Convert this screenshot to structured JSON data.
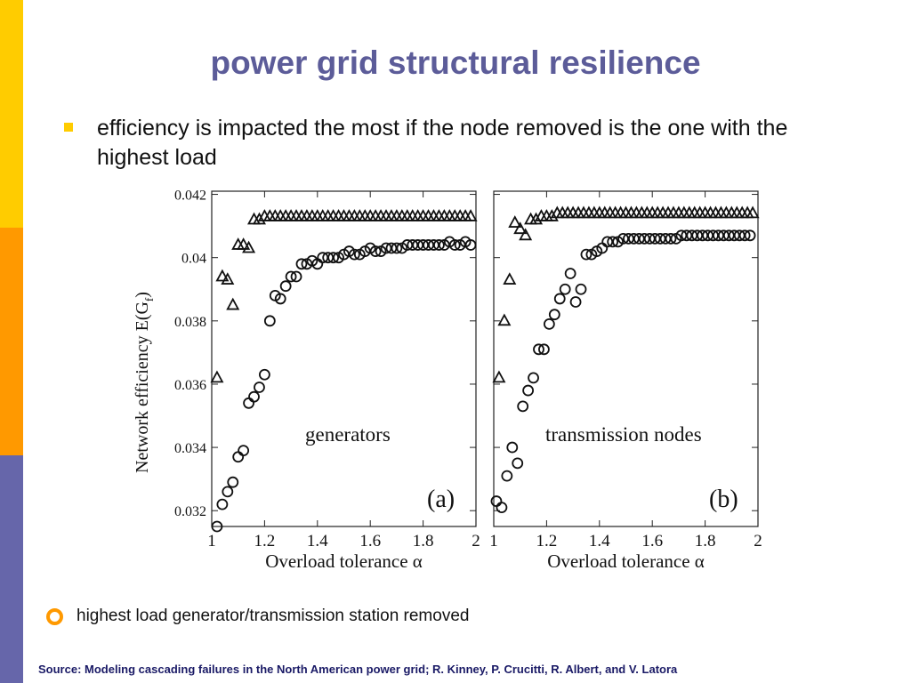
{
  "slide": {
    "title": "power grid structural resilience",
    "bullet1": "efficiency is impacted the most if the node removed is the one with the highest load",
    "bullet2": "highest load generator/transmission station removed",
    "source": "Source: Modeling cascading failures in the North American power grid; R. Kinney, P. Crucitti, R. Albert, and V. Latora"
  },
  "theme": {
    "title_color": "#5c5c99",
    "bar_colors": [
      "#ffcc00",
      "#ff9900",
      "#6666aa"
    ],
    "bullet_square_color": "#ffcc00",
    "bullet_ring_color": "#ff9900",
    "source_color": "#1a1a66"
  },
  "chart_data": {
    "type": "scatter",
    "ylabel_main": "Network efficiency E(G",
    "ylabel_sub": "f",
    "ylabel_close": ")",
    "xlabel": "Overload tolerance α",
    "xlim": [
      1,
      2
    ],
    "ylim": [
      0.0315,
      0.0421
    ],
    "x_ticks": [
      "1",
      "1.2",
      "1.4",
      "1.6",
      "1.8",
      "2"
    ],
    "x_tick_values": [
      1,
      1.2,
      1.4,
      1.6,
      1.8,
      2
    ],
    "y_ticks": [
      "0.032",
      "0.034",
      "0.036",
      "0.038",
      "0.04",
      "0.042"
    ],
    "y_tick_values": [
      0.032,
      0.034,
      0.036,
      0.038,
      0.04,
      0.042
    ],
    "panels": [
      {
        "panel_label": "(a)",
        "annotation": "generators",
        "series": [
          {
            "marker": "triangle",
            "x": [
              1.02,
              1.04,
              1.06,
              1.08,
              1.1,
              1.12,
              1.14,
              1.16,
              1.18,
              1.2,
              1.22,
              1.24,
              1.26,
              1.28,
              1.3,
              1.32,
              1.34,
              1.36,
              1.38,
              1.4,
              1.42,
              1.44,
              1.46,
              1.48,
              1.5,
              1.52,
              1.54,
              1.56,
              1.58,
              1.6,
              1.62,
              1.64,
              1.66,
              1.68,
              1.7,
              1.72,
              1.74,
              1.76,
              1.78,
              1.8,
              1.82,
              1.84,
              1.86,
              1.88,
              1.9,
              1.92,
              1.94,
              1.96,
              1.98
            ],
            "y": [
              0.0362,
              0.0394,
              0.0393,
              0.0385,
              0.0404,
              0.0404,
              0.0403,
              0.0412,
              0.0412,
              0.0413,
              0.0413,
              0.0413,
              0.0413,
              0.0413,
              0.0413,
              0.0413,
              0.0413,
              0.0413,
              0.0413,
              0.0413,
              0.0413,
              0.0413,
              0.0413,
              0.0413,
              0.0413,
              0.0413,
              0.0413,
              0.0413,
              0.0413,
              0.0413,
              0.0413,
              0.0413,
              0.0413,
              0.0413,
              0.0413,
              0.0413,
              0.0413,
              0.0413,
              0.0413,
              0.0413,
              0.0413,
              0.0413,
              0.0413,
              0.0413,
              0.0413,
              0.0413,
              0.0413,
              0.0413,
              0.0413
            ]
          },
          {
            "marker": "circle",
            "x": [
              1.02,
              1.04,
              1.06,
              1.08,
              1.1,
              1.12,
              1.14,
              1.16,
              1.18,
              1.2,
              1.22,
              1.24,
              1.26,
              1.28,
              1.3,
              1.32,
              1.34,
              1.36,
              1.38,
              1.4,
              1.42,
              1.44,
              1.46,
              1.48,
              1.5,
              1.52,
              1.54,
              1.56,
              1.58,
              1.6,
              1.62,
              1.64,
              1.66,
              1.68,
              1.7,
              1.72,
              1.74,
              1.76,
              1.78,
              1.8,
              1.82,
              1.84,
              1.86,
              1.88,
              1.9,
              1.92,
              1.94,
              1.96,
              1.98
            ],
            "y": [
              0.0315,
              0.0322,
              0.0326,
              0.0329,
              0.0337,
              0.0339,
              0.0354,
              0.0356,
              0.0359,
              0.0363,
              0.038,
              0.0388,
              0.0387,
              0.0391,
              0.0394,
              0.0394,
              0.0398,
              0.0398,
              0.0399,
              0.0398,
              0.04,
              0.04,
              0.04,
              0.04,
              0.0401,
              0.0402,
              0.0401,
              0.0401,
              0.0402,
              0.0403,
              0.0402,
              0.0402,
              0.0403,
              0.0403,
              0.0403,
              0.0403,
              0.0404,
              0.0404,
              0.0404,
              0.0404,
              0.0404,
              0.0404,
              0.0404,
              0.0404,
              0.0405,
              0.0404,
              0.0404,
              0.0405,
              0.0404
            ]
          }
        ]
      },
      {
        "panel_label": "(b)",
        "annotation": "transmission nodes",
        "series": [
          {
            "marker": "triangle",
            "x": [
              1.02,
              1.04,
              1.06,
              1.08,
              1.1,
              1.12,
              1.14,
              1.16,
              1.18,
              1.2,
              1.22,
              1.24,
              1.26,
              1.28,
              1.3,
              1.32,
              1.34,
              1.36,
              1.38,
              1.4,
              1.42,
              1.44,
              1.46,
              1.48,
              1.5,
              1.52,
              1.54,
              1.56,
              1.58,
              1.6,
              1.62,
              1.64,
              1.66,
              1.68,
              1.7,
              1.72,
              1.74,
              1.76,
              1.78,
              1.8,
              1.82,
              1.84,
              1.86,
              1.88,
              1.9,
              1.92,
              1.94,
              1.96,
              1.98
            ],
            "y": [
              0.0362,
              0.038,
              0.0393,
              0.0411,
              0.0409,
              0.0407,
              0.0412,
              0.0412,
              0.0413,
              0.0413,
              0.0413,
              0.0414,
              0.0414,
              0.0414,
              0.0414,
              0.0414,
              0.0414,
              0.0414,
              0.0414,
              0.0414,
              0.0414,
              0.0414,
              0.0414,
              0.0414,
              0.0414,
              0.0414,
              0.0414,
              0.0414,
              0.0414,
              0.0414,
              0.0414,
              0.0414,
              0.0414,
              0.0414,
              0.0414,
              0.0414,
              0.0414,
              0.0414,
              0.0414,
              0.0414,
              0.0414,
              0.0414,
              0.0414,
              0.0414,
              0.0414,
              0.0414,
              0.0414,
              0.0414,
              0.0414
            ]
          },
          {
            "marker": "circle",
            "x": [
              1.01,
              1.03,
              1.05,
              1.07,
              1.09,
              1.11,
              1.13,
              1.15,
              1.17,
              1.19,
              1.21,
              1.23,
              1.25,
              1.27,
              1.29,
              1.31,
              1.33,
              1.35,
              1.37,
              1.39,
              1.41,
              1.43,
              1.45,
              1.47,
              1.49,
              1.51,
              1.53,
              1.55,
              1.57,
              1.59,
              1.61,
              1.63,
              1.65,
              1.67,
              1.69,
              1.71,
              1.73,
              1.75,
              1.77,
              1.79,
              1.81,
              1.83,
              1.85,
              1.87,
              1.89,
              1.91,
              1.93,
              1.95,
              1.97
            ],
            "y": [
              0.0323,
              0.0321,
              0.0331,
              0.034,
              0.0335,
              0.0353,
              0.0358,
              0.0362,
              0.0371,
              0.0371,
              0.0379,
              0.0382,
              0.0387,
              0.039,
              0.0395,
              0.0386,
              0.039,
              0.0401,
              0.0401,
              0.0402,
              0.0403,
              0.0405,
              0.0405,
              0.0405,
              0.0406,
              0.0406,
              0.0406,
              0.0406,
              0.0406,
              0.0406,
              0.0406,
              0.0406,
              0.0406,
              0.0406,
              0.0406,
              0.0407,
              0.0407,
              0.0407,
              0.0407,
              0.0407,
              0.0407,
              0.0407,
              0.0407,
              0.0407,
              0.0407,
              0.0407,
              0.0407,
              0.0407,
              0.0407
            ]
          }
        ]
      }
    ]
  }
}
